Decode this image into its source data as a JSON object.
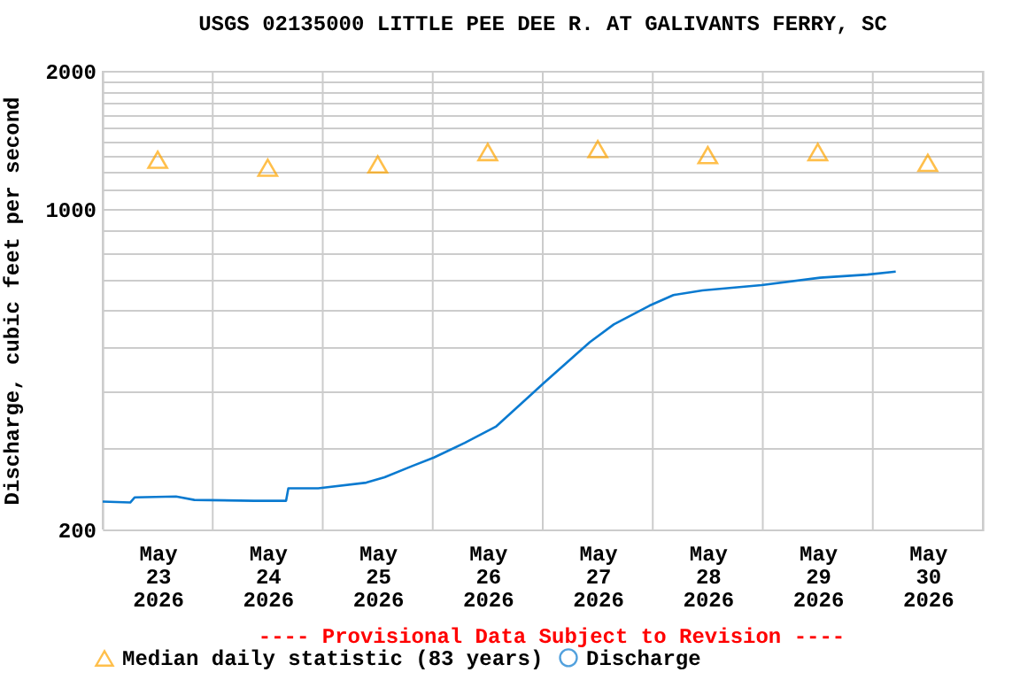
{
  "chart_data": {
    "type": "line",
    "title": "USGS 02135000 LITTLE PEE DEE R. AT GALIVANTS FERRY, SC",
    "ylabel": "Discharge, cubic feet per second",
    "annotations": [
      "---- Provisional Data Subject to Revision ----"
    ],
    "log": "y",
    "grid": true,
    "legend": "bottom",
    "xlim": [
      "2026-05-23T00:00",
      "2026-05-31T00:00"
    ],
    "xticks": [
      {
        "value": "2026-05-23T00:00",
        "label": null
      },
      {
        "value": "2026-05-23T12:00",
        "label": "May\n23\n2026"
      },
      {
        "value": "2026-05-24T00:00",
        "label": null
      },
      {
        "value": "2026-05-24T12:00",
        "label": "May\n24\n2026"
      },
      {
        "value": "2026-05-25T00:00",
        "label": null
      },
      {
        "value": "2026-05-25T12:00",
        "label": "May\n25\n2026"
      },
      {
        "value": "2026-05-26T00:00",
        "label": null
      },
      {
        "value": "2026-05-26T12:00",
        "label": "May\n26\n2026"
      },
      {
        "value": "2026-05-27T00:00",
        "label": null
      },
      {
        "value": "2026-05-27T12:00",
        "label": "May\n27\n2026"
      },
      {
        "value": "2026-05-28T00:00",
        "label": null
      },
      {
        "value": "2026-05-28T12:00",
        "label": "May\n28\n2026"
      },
      {
        "value": "2026-05-29T00:00",
        "label": null
      },
      {
        "value": "2026-05-29T12:00",
        "label": "May\n29\n2026"
      },
      {
        "value": "2026-05-30T00:00",
        "label": null
      },
      {
        "value": "2026-05-30T12:00",
        "label": "May\n30\n2026"
      },
      {
        "value": "2026-05-31T00:00",
        "label": null
      }
    ],
    "ylim": [
      200,
      2000
    ],
    "yticks": [
      200,
      {
        "value": 300,
        "label": null
      },
      {
        "value": 400,
        "label": null
      },
      {
        "value": 500,
        "label": null
      },
      {
        "value": 600,
        "label": null
      },
      {
        "value": 700,
        "label": null
      },
      {
        "value": 800,
        "label": null
      },
      {
        "value": 900,
        "label": null
      },
      1000,
      {
        "value": 1100,
        "label": null
      },
      {
        "value": 1200,
        "label": null
      },
      {
        "value": 1300,
        "label": null
      },
      {
        "value": 1400,
        "label": null
      },
      {
        "value": 1500,
        "label": null
      },
      {
        "value": 1600,
        "label": null
      },
      {
        "value": 1700,
        "label": null
      },
      {
        "value": 1800,
        "label": null
      },
      {
        "value": 1900,
        "label": null
      },
      2000
    ],
    "series": [
      {
        "name": "Median daily statistic (83 years)",
        "type": "scatter",
        "marker": "triangle",
        "color": "#ffa500",
        "x": [
          "2026-05-23T12:00",
          "2026-05-24T12:00",
          "2026-05-25T12:00",
          "2026-05-26T12:00",
          "2026-05-27T12:00",
          "2026-05-28T12:00",
          "2026-05-29T12:00",
          "2026-05-30T12:00"
        ],
        "values": [
          1280,
          1230,
          1250,
          1330,
          1350,
          1310,
          1330,
          1260
        ]
      },
      {
        "name": "Discharge",
        "marker": "none",
        "line_style": "solid",
        "color": "#0a7ad0",
        "x": [
          "2026-05-23T00:00",
          "2026-05-23T06:00",
          "2026-05-23T07:00",
          "2026-05-23T16:00",
          "2026-05-23T20:00",
          "2026-05-24T09:00",
          "2026-05-24T16:00",
          "2026-05-24T16:30",
          "2026-05-24T23:00",
          "2026-05-25T09:30",
          "2026-05-25T13:30",
          "2026-05-25T19:30",
          "2026-05-26T00:15",
          "2026-05-26T07:00",
          "2026-05-26T13:45",
          "2026-05-26T21:30",
          "2026-05-27T00:05",
          "2026-05-27T10:15",
          "2026-05-27T15:30",
          "2026-05-27T23:15",
          "2026-05-28T04:30",
          "2026-05-28T10:50",
          "2026-05-28T23:45",
          "2026-05-29T12:30",
          "2026-05-29T22:50",
          "2026-05-30T05:00"
        ],
        "values": [
          230,
          229,
          235,
          236,
          232,
          231,
          231,
          246,
          246,
          253,
          260,
          275,
          287,
          309,
          335,
          394,
          416,
          512,
          560,
          615,
          649,
          664,
          682,
          708,
          719,
          730
        ]
      }
    ]
  }
}
